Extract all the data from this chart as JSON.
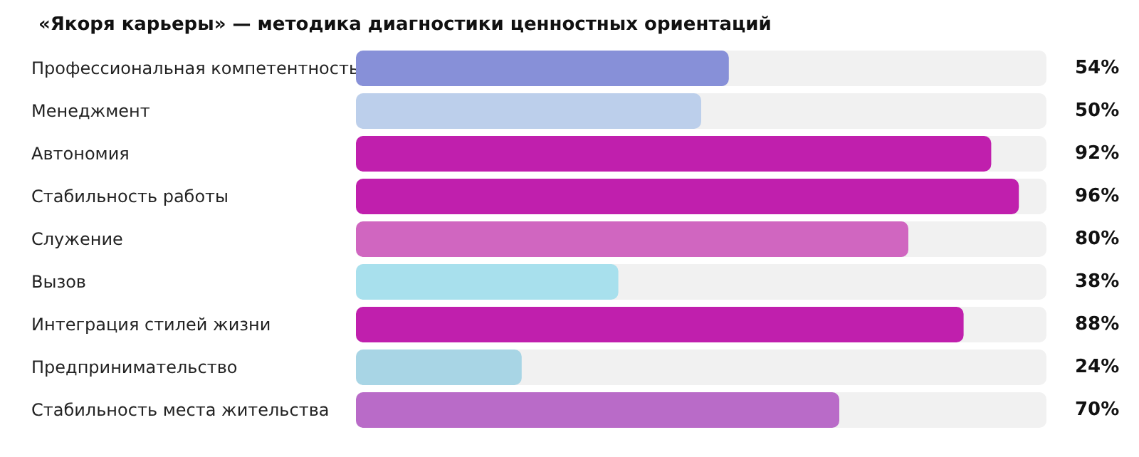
{
  "chart_data": {
    "type": "bar",
    "orientation": "horizontal",
    "title": "«Якоря карьеры» — методика диагностики ценностных ориентаций",
    "categories": [
      "Профессиональная компетентность",
      "Менеджмент",
      "Автономия",
      "Стабильность работы",
      "Служение",
      "Вызов",
      "Интеграция стилей жизни",
      "Предпринимательство",
      "Стабильность места жительства"
    ],
    "values": [
      54,
      50,
      92,
      96,
      80,
      38,
      88,
      24,
      70
    ],
    "colors": [
      "#8790d8",
      "#bccfeb",
      "#c01fad",
      "#c01fad",
      "#d066c0",
      "#a8e0ed",
      "#c01fad",
      "#a8d5e5",
      "#b96bc8"
    ],
    "value_labels": [
      "54%",
      "50%",
      "92%",
      "96%",
      "80%",
      "38%",
      "88%",
      "24%",
      "70%"
    ],
    "xlim": [
      0,
      100
    ],
    "tick_labels": "y"
  }
}
